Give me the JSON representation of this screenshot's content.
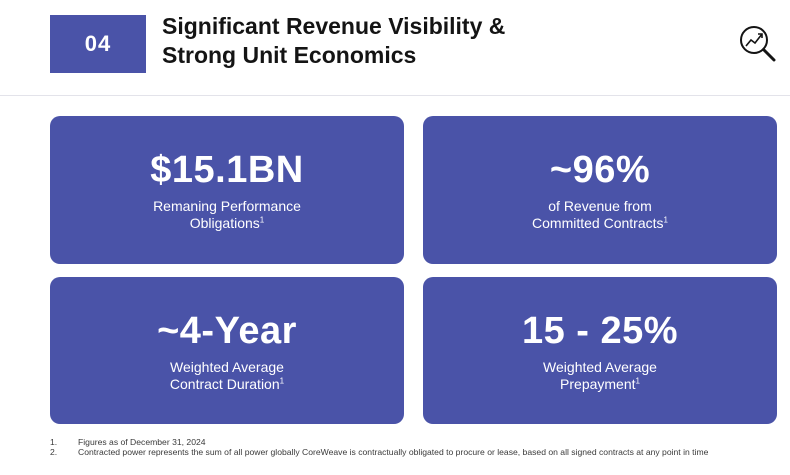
{
  "header": {
    "badge": "04",
    "title_line1": "Significant Revenue Visibility &",
    "title_line2": "Strong Unit Economics",
    "icon": "magnifier-chart-icon"
  },
  "cards": [
    {
      "metric": "$15.1BN",
      "line1": "Remaning Performance",
      "line2": "Obligations",
      "sup": "1"
    },
    {
      "metric": "~96%",
      "line1": "of Revenue from",
      "line2": "Committed Contracts",
      "sup": "1"
    },
    {
      "metric": "~4-Year",
      "line1": "Weighted Average",
      "line2": "Contract Duration",
      "sup": "1"
    },
    {
      "metric": "15 - 25%",
      "line1": "Weighted Average",
      "line2": "Prepayment",
      "sup": "1"
    }
  ],
  "footnotes": [
    {
      "num": "1.",
      "text": "Figures as of December 31, 2024"
    },
    {
      "num": "2.",
      "text": "Contracted power represents the sum of all power globally CoreWeave is contractually obligated to procure or lease, based on all signed contracts at any point in time"
    }
  ],
  "colors": {
    "accent": "#4a53a8",
    "text": "#141414"
  }
}
